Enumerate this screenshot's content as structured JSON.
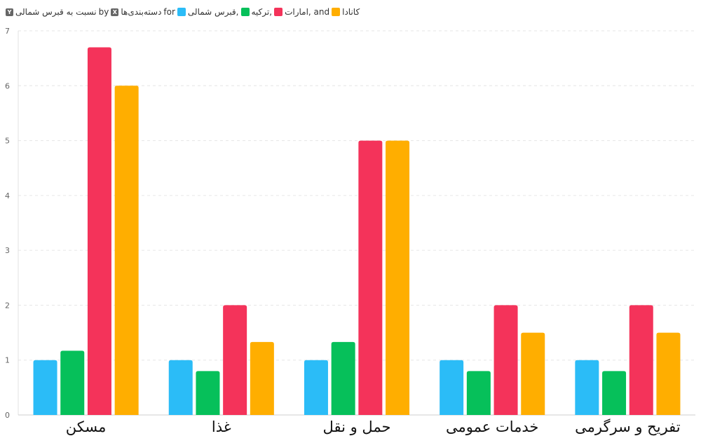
{
  "legend": {
    "y_axis_name": "نسبت به قبرس شمالی",
    "y_badge": "Y",
    "by": "by",
    "x_axis_name": "دسته‌بندی‌ها",
    "x_badge": "X",
    "for": "for",
    "entries": [
      "قبرس شمالی,",
      "ترکیه,",
      "امارات, and",
      "کانادا"
    ]
  },
  "chart_data": {
    "type": "bar",
    "categories": [
      "مسکن",
      "غذا",
      "حمل و نقل",
      "خدمات عمومی",
      "تفریح و سرگرمی"
    ],
    "series": [
      {
        "name": "قبرس شمالی",
        "color": "#2bbcf7",
        "values": [
          1,
          1,
          1,
          1,
          1
        ]
      },
      {
        "name": "ترکیه",
        "color": "#06c05a",
        "values": [
          1.17,
          0.8,
          1.33,
          0.8,
          0.8
        ]
      },
      {
        "name": "امارات",
        "color": "#f4335a",
        "values": [
          6.7,
          2,
          5,
          2,
          2
        ]
      },
      {
        "name": "کانادا",
        "color": "#ffae00",
        "values": [
          6,
          1.33,
          5,
          1.5,
          1.5
        ]
      }
    ],
    "ylim": [
      0,
      7
    ],
    "yticks": [
      0,
      1,
      2,
      3,
      4,
      5,
      6,
      7
    ],
    "grid": true,
    "legend_position": "top-left"
  }
}
